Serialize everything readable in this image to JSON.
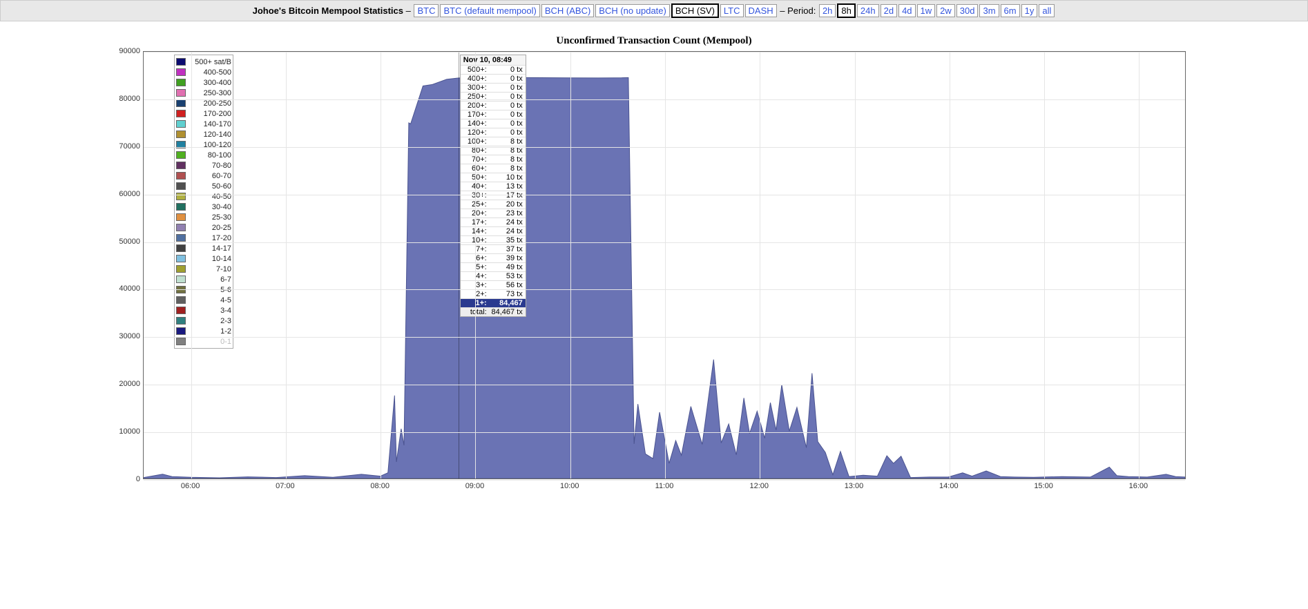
{
  "topbar": {
    "title": "Johoe's Bitcoin Mempool Statistics",
    "separator": " – ",
    "coins": [
      {
        "label": "BTC",
        "active": false
      },
      {
        "label": "BTC (default mempool)",
        "active": false
      },
      {
        "label": "BCH (ABC)",
        "active": false
      },
      {
        "label": "BCH (no update)",
        "active": false
      },
      {
        "label": "BCH (SV)",
        "active": true
      },
      {
        "label": "LTC",
        "active": false
      },
      {
        "label": "DASH",
        "active": false
      }
    ],
    "period_label": "Period:",
    "periods": [
      {
        "label": "2h",
        "active": false
      },
      {
        "label": "8h",
        "active": true
      },
      {
        "label": "24h",
        "active": false
      },
      {
        "label": "2d",
        "active": false
      },
      {
        "label": "4d",
        "active": false
      },
      {
        "label": "1w",
        "active": false
      },
      {
        "label": "2w",
        "active": false
      },
      {
        "label": "30d",
        "active": false
      },
      {
        "label": "3m",
        "active": false
      },
      {
        "label": "6m",
        "active": false
      },
      {
        "label": "1y",
        "active": false
      },
      {
        "label": "all",
        "active": false
      }
    ]
  },
  "chart": {
    "title": "Unconfirmed Transaction Count (Mempool)",
    "type": "stacked-area",
    "area_color": "#6a73b4",
    "area_stroke": "#4a5390",
    "background_color": "#ffffff",
    "grid_color": "#e5e5e5",
    "border_color": "#666666",
    "ylim": [
      0,
      90000
    ],
    "ytick_step": 10000,
    "yticks": [
      0,
      10000,
      20000,
      30000,
      40000,
      50000,
      60000,
      70000,
      80000,
      90000
    ],
    "xlim_hours": [
      5.5,
      16.5
    ],
    "xticks": [
      6,
      7,
      8,
      9,
      10,
      11,
      12,
      13,
      14,
      15,
      16
    ],
    "xtick_labels": [
      "06:00",
      "07:00",
      "08:00",
      "09:00",
      "10:00",
      "11:00",
      "12:00",
      "13:00",
      "14:00",
      "15:00",
      "16:00"
    ],
    "minor_y_grid": false,
    "cursor_hour": 8.82,
    "series_points": [
      [
        5.5,
        200
      ],
      [
        5.7,
        900
      ],
      [
        5.8,
        400
      ],
      [
        6.0,
        250
      ],
      [
        6.3,
        150
      ],
      [
        6.6,
        350
      ],
      [
        6.9,
        200
      ],
      [
        7.2,
        600
      ],
      [
        7.5,
        250
      ],
      [
        7.8,
        900
      ],
      [
        8.0,
        500
      ],
      [
        8.08,
        1200
      ],
      [
        8.15,
        17500
      ],
      [
        8.17,
        3500
      ],
      [
        8.22,
        10500
      ],
      [
        8.25,
        7000
      ],
      [
        8.3,
        75000
      ],
      [
        8.32,
        74800
      ],
      [
        8.45,
        82800
      ],
      [
        8.55,
        83100
      ],
      [
        8.7,
        84200
      ],
      [
        8.82,
        84467
      ],
      [
        9.0,
        84600
      ],
      [
        9.5,
        84550
      ],
      [
        10.0,
        84500
      ],
      [
        10.3,
        84480
      ],
      [
        10.55,
        84520
      ],
      [
        10.62,
        84550
      ],
      [
        10.68,
        7300
      ],
      [
        10.72,
        15700
      ],
      [
        10.8,
        5200
      ],
      [
        10.88,
        4200
      ],
      [
        10.95,
        14000
      ],
      [
        11.05,
        3200
      ],
      [
        11.12,
        8000
      ],
      [
        11.18,
        4900
      ],
      [
        11.28,
        15200
      ],
      [
        11.4,
        7200
      ],
      [
        11.52,
        25100
      ],
      [
        11.6,
        7500
      ],
      [
        11.68,
        11500
      ],
      [
        11.76,
        5000
      ],
      [
        11.84,
        17000
      ],
      [
        11.9,
        9500
      ],
      [
        11.98,
        14200
      ],
      [
        12.06,
        8500
      ],
      [
        12.12,
        16000
      ],
      [
        12.18,
        10200
      ],
      [
        12.24,
        19800
      ],
      [
        12.32,
        10000
      ],
      [
        12.4,
        15000
      ],
      [
        12.5,
        6500
      ],
      [
        12.56,
        22200
      ],
      [
        12.62,
        7800
      ],
      [
        12.7,
        5500
      ],
      [
        12.78,
        800
      ],
      [
        12.86,
        5700
      ],
      [
        12.95,
        400
      ],
      [
        13.1,
        700
      ],
      [
        13.25,
        500
      ],
      [
        13.35,
        4800
      ],
      [
        13.42,
        3200
      ],
      [
        13.5,
        4700
      ],
      [
        13.6,
        200
      ],
      [
        13.8,
        300
      ],
      [
        14.0,
        300
      ],
      [
        14.15,
        1200
      ],
      [
        14.25,
        500
      ],
      [
        14.4,
        1600
      ],
      [
        14.55,
        400
      ],
      [
        14.7,
        300
      ],
      [
        14.9,
        250
      ],
      [
        15.2,
        400
      ],
      [
        15.5,
        300
      ],
      [
        15.7,
        2400
      ],
      [
        15.78,
        600
      ],
      [
        15.9,
        400
      ],
      [
        16.1,
        300
      ],
      [
        16.3,
        900
      ],
      [
        16.4,
        400
      ],
      [
        16.5,
        300
      ]
    ],
    "label_fontsize": 11,
    "title_fontsize": 15
  },
  "legend": {
    "items": [
      {
        "label": "500+ sat/B",
        "color": "#0b0b70"
      },
      {
        "label": "400-500",
        "color": "#c030c0"
      },
      {
        "label": "300-400",
        "color": "#40a020"
      },
      {
        "label": "250-300",
        "color": "#e070b0"
      },
      {
        "label": "200-250",
        "color": "#1a4070"
      },
      {
        "label": "170-200",
        "color": "#d02020"
      },
      {
        "label": "140-170",
        "color": "#60d0d0"
      },
      {
        "label": "120-140",
        "color": "#b09030"
      },
      {
        "label": "100-120",
        "color": "#2080a0"
      },
      {
        "label": "80-100",
        "color": "#50b020"
      },
      {
        "label": "70-80",
        "color": "#603060"
      },
      {
        "label": "60-70",
        "color": "#b05050"
      },
      {
        "label": "50-60",
        "color": "#505050"
      },
      {
        "label": "40-50",
        "color": "#b0b040"
      },
      {
        "label": "30-40",
        "color": "#207060"
      },
      {
        "label": "25-30",
        "color": "#e09040"
      },
      {
        "label": "20-25",
        "color": "#9080b0"
      },
      {
        "label": "17-20",
        "color": "#5070a0"
      },
      {
        "label": "14-17",
        "color": "#404040"
      },
      {
        "label": "10-14",
        "color": "#80c0e0"
      },
      {
        "label": "7-10",
        "color": "#a0a030"
      },
      {
        "label": "6-7",
        "color": "#c0e0d0"
      },
      {
        "label": "5-6",
        "color": "#707040"
      },
      {
        "label": "4-5",
        "color": "#606060"
      },
      {
        "label": "3-4",
        "color": "#a02020"
      },
      {
        "label": "2-3",
        "color": "#308080"
      },
      {
        "label": "1-2",
        "color": "#1a1a80"
      },
      {
        "label": "0-1",
        "color": "#808080",
        "dim": true
      }
    ]
  },
  "tooltip": {
    "header": "Nov 10, 08:49",
    "rows": [
      {
        "k": "500+:",
        "v": "0 tx"
      },
      {
        "k": "400+:",
        "v": "0 tx"
      },
      {
        "k": "300+:",
        "v": "0 tx"
      },
      {
        "k": "250+:",
        "v": "0 tx"
      },
      {
        "k": "200+:",
        "v": "0 tx"
      },
      {
        "k": "170+:",
        "v": "0 tx"
      },
      {
        "k": "140+:",
        "v": "0 tx"
      },
      {
        "k": "120+:",
        "v": "0 tx"
      },
      {
        "k": "100+:",
        "v": "8 tx"
      },
      {
        "k": "80+:",
        "v": "8 tx"
      },
      {
        "k": "70+:",
        "v": "8 tx"
      },
      {
        "k": "60+:",
        "v": "8 tx"
      },
      {
        "k": "50+:",
        "v": "10 tx"
      },
      {
        "k": "40+:",
        "v": "13 tx"
      },
      {
        "k": "30+:",
        "v": "17 tx"
      },
      {
        "k": "25+:",
        "v": "20 tx"
      },
      {
        "k": "20+:",
        "v": "23 tx"
      },
      {
        "k": "17+:",
        "v": "24 tx"
      },
      {
        "k": "14+:",
        "v": "24 tx"
      },
      {
        "k": "10+:",
        "v": "35 tx"
      },
      {
        "k": "7+:",
        "v": "37 tx"
      },
      {
        "k": "6+:",
        "v": "39 tx"
      },
      {
        "k": "5+:",
        "v": "49 tx"
      },
      {
        "k": "4+:",
        "v": "53 tx"
      },
      {
        "k": "3+:",
        "v": "56 tx"
      },
      {
        "k": "2+:",
        "v": "73 tx"
      },
      {
        "k": "1+:",
        "v": "84,467 tx",
        "hl": true
      },
      {
        "k": "total:",
        "v": "84,467 tx",
        "total": true
      }
    ]
  }
}
